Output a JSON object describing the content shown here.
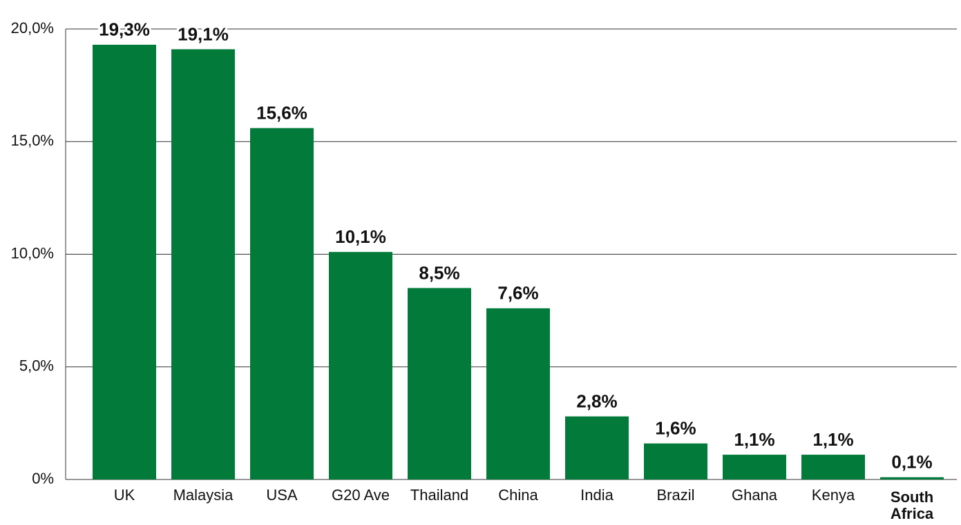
{
  "chart_data": {
    "type": "bar",
    "categories": [
      "UK",
      "Malaysia",
      "USA",
      "G20 Ave",
      "Thailand",
      "China",
      "India",
      "Brazil",
      "Ghana",
      "Kenya",
      "South Africa"
    ],
    "values": [
      19.3,
      19.1,
      15.6,
      10.1,
      8.5,
      7.6,
      2.8,
      1.6,
      1.1,
      1.1,
      0.1
    ],
    "value_labels": [
      "19,3%",
      "19,1%",
      "15,6%",
      "10,1%",
      "8,5%",
      "7,6%",
      "2,8%",
      "1,6%",
      "1,1%",
      "1,1%",
      "0,1%"
    ],
    "color": "#017a3a",
    "ylim": [
      0,
      20
    ],
    "yticks": [
      {
        "value": 0,
        "label": "0%"
      },
      {
        "value": 5,
        "label": "5,0%"
      },
      {
        "value": 10,
        "label": "10,0%"
      },
      {
        "value": 15,
        "label": "15,0%"
      },
      {
        "value": 20,
        "label": "20,0%"
      }
    ],
    "grid": true,
    "highlight": 10
  }
}
